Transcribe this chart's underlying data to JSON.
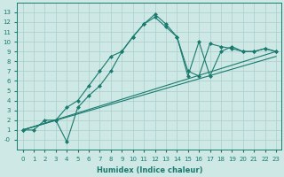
{
  "xlabel": "Humidex (Indice chaleur)",
  "xlim": [
    -0.5,
    23.5
  ],
  "ylim": [
    -1,
    14
  ],
  "xticks": [
    0,
    1,
    2,
    3,
    4,
    5,
    6,
    7,
    8,
    9,
    10,
    11,
    12,
    13,
    14,
    15,
    16,
    17,
    18,
    19,
    20,
    21,
    22,
    23
  ],
  "yticks": [
    0,
    1,
    2,
    3,
    4,
    5,
    6,
    7,
    8,
    9,
    10,
    11,
    12,
    13
  ],
  "ytick_labels": [
    "-0",
    "1",
    "2",
    "3",
    "4",
    "5",
    "6",
    "7",
    "8",
    "9",
    "10",
    "11",
    "12",
    "13"
  ],
  "line_color": "#1a7a6e",
  "bg_color": "#cde8e5",
  "grid_color": "#aacfcc",
  "line1_x": [
    0,
    1,
    2,
    3,
    4,
    5,
    6,
    7,
    8,
    9,
    10,
    11,
    12,
    13,
    14,
    15,
    16,
    17,
    18,
    19,
    20,
    21,
    22,
    23
  ],
  "line1_y": [
    1,
    1,
    2,
    2,
    3.3,
    4,
    5.5,
    7,
    8.5,
    9,
    10.5,
    11.8,
    12.8,
    11.8,
    10.5,
    7,
    6.5,
    9.8,
    9.5,
    9.3,
    9,
    9,
    9.3,
    9
  ],
  "line2_x": [
    0,
    3,
    4,
    5,
    6,
    7,
    8,
    9,
    10,
    11,
    12,
    13,
    14,
    15,
    16,
    17,
    18,
    19,
    20,
    21,
    22,
    23
  ],
  "line2_y": [
    1,
    2,
    -0.2,
    3.3,
    4.5,
    5.5,
    7,
    9,
    10.5,
    11.8,
    12.5,
    11.5,
    10.5,
    6.5,
    10,
    6.5,
    9,
    9.5,
    9,
    9,
    9.3,
    9
  ],
  "line3_x": [
    0,
    23
  ],
  "line3_y": [
    1,
    9
  ],
  "line4_x": [
    0,
    23
  ],
  "line4_y": [
    1,
    8.5
  ],
  "marker_size": 2.5,
  "linewidth": 0.8
}
